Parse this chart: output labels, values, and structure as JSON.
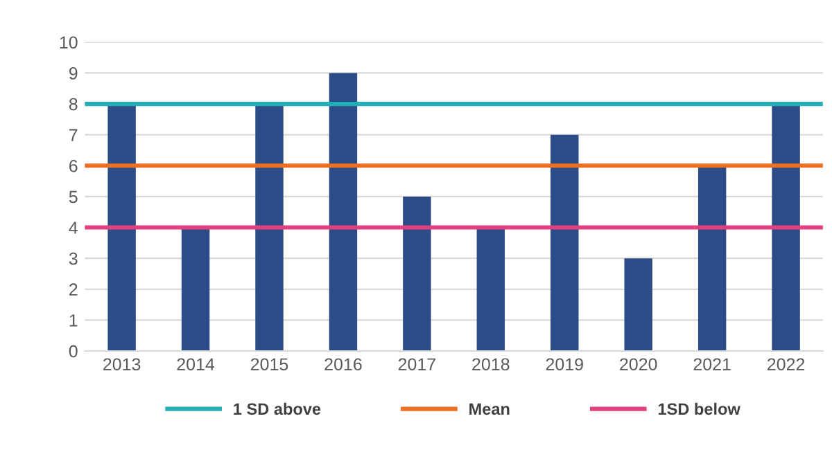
{
  "chart_data": {
    "type": "bar",
    "categories": [
      "2013",
      "2014",
      "2015",
      "2016",
      "2017",
      "2018",
      "2019",
      "2020",
      "2021",
      "2022"
    ],
    "values": [
      8,
      4,
      8,
      9,
      5,
      4,
      7,
      3,
      6,
      8
    ],
    "color": "#2b4c86",
    "ylim": [
      0,
      10
    ],
    "yticks": [
      0,
      1,
      2,
      3,
      4,
      5,
      6,
      7,
      8,
      9,
      10
    ],
    "grid": "y",
    "ref_lines": [
      {
        "axis": "y",
        "value": 8,
        "label": "1 SD above",
        "color": "#22aeb4"
      },
      {
        "axis": "y",
        "value": 6,
        "label": "Mean",
        "color": "#ec6f22"
      },
      {
        "axis": "y",
        "value": 4,
        "label": "1SD below",
        "color": "#e0427f"
      }
    ],
    "legend": "bottom"
  }
}
